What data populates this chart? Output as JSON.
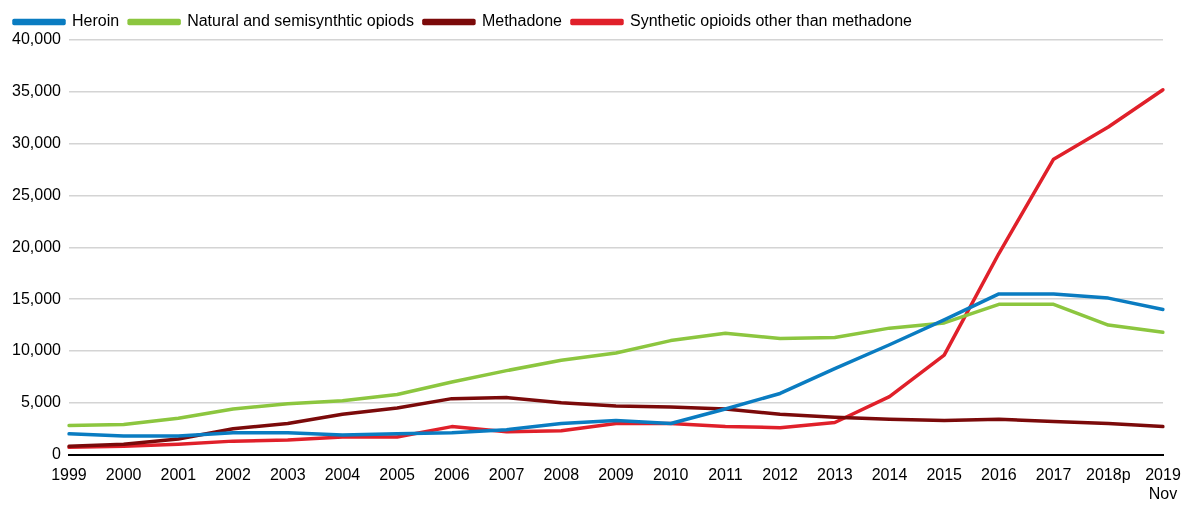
{
  "chart_data": {
    "type": "line",
    "categories": [
      "1999",
      "2000",
      "2001",
      "2002",
      "2003",
      "2004",
      "2005",
      "2006",
      "2007",
      "2008",
      "2009",
      "2010",
      "2011",
      "2012",
      "2013",
      "2014",
      "2015",
      "2016",
      "2017",
      "2018p",
      "2019 Nov"
    ],
    "series": [
      {
        "name": "Heroin",
        "color": "#0a7cc1",
        "values": [
          2000,
          1800,
          1800,
          2100,
          2100,
          1900,
          2000,
          2100,
          2400,
          3000,
          3300,
          3000,
          4400,
          5900,
          8300,
          10600,
          13000,
          15500,
          15500,
          15100,
          14000
        ]
      },
      {
        "name": "Natural and semisynthtic opiods",
        "color": "#8cc63f",
        "values": [
          2800,
          2900,
          3500,
          4400,
          4900,
          5200,
          5800,
          7000,
          8100,
          9100,
          9800,
          11000,
          11700,
          11200,
          11300,
          12200,
          12700,
          14500,
          14500,
          12500,
          11800
        ]
      },
      {
        "name": "Methadone",
        "color": "#7b0a0a",
        "values": [
          800,
          1000,
          1500,
          2500,
          3000,
          3900,
          4500,
          5400,
          5500,
          5000,
          4700,
          4600,
          4400,
          3900,
          3600,
          3400,
          3300,
          3400,
          3200,
          3000,
          2700
        ]
      },
      {
        "name": "Synthetic opioids other than methadone",
        "color": "#e0202a",
        "values": [
          700,
          800,
          1000,
          1300,
          1400,
          1700,
          1700,
          2700,
          2200,
          2300,
          3000,
          3000,
          2700,
          2600,
          3100,
          5600,
          9600,
          19400,
          28500,
          31600,
          35200
        ]
      }
    ],
    "ylim": [
      0,
      40000
    ],
    "yticks": [
      0,
      {
        "value": 5000,
        "label": "5,000"
      },
      {
        "value": 10000,
        "label": "10,000"
      },
      {
        "value": 15000,
        "label": "15,000"
      },
      {
        "value": 20000,
        "label": "20,000"
      },
      {
        "value": 25000,
        "label": "25,000"
      },
      {
        "value": 30000,
        "label": "30,000"
      },
      {
        "value": 35000,
        "label": "35,000"
      },
      {
        "value": 40000,
        "label": "40,000"
      }
    ],
    "grid": "y",
    "legend": "top",
    "marker": "none",
    "line_style": "solid"
  }
}
